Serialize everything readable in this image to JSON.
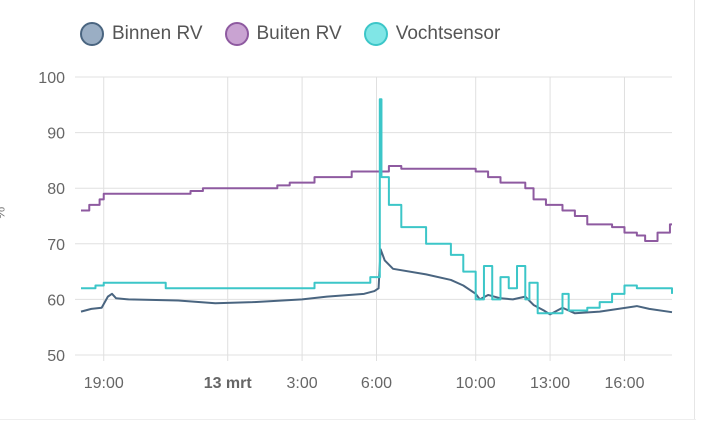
{
  "chart_data": {
    "type": "line",
    "ylabel": "%",
    "ylim": [
      50,
      100
    ],
    "yticks": [
      "100",
      "90",
      "80",
      "70",
      "60",
      "50"
    ],
    "xlim": [
      "12 mrt 18:05",
      "13 mrt 17:55"
    ],
    "xticks": [
      {
        "t": "12 mrt 19:00",
        "label": "19:00",
        "bold": false
      },
      {
        "t": "13 mrt 00:00",
        "label": "13 mrt",
        "bold": true
      },
      {
        "t": "13 mrt 03:00",
        "label": "3:00",
        "bold": false
      },
      {
        "t": "13 mrt 06:00",
        "label": "6:00",
        "bold": false
      },
      {
        "t": "13 mrt 10:00",
        "label": "10:00",
        "bold": false
      },
      {
        "t": "13 mrt 13:00",
        "label": "13:00",
        "bold": false
      },
      {
        "t": "13 mrt 16:00",
        "label": "16:00",
        "bold": false
      }
    ],
    "grid": true,
    "legend": "top",
    "series": [
      {
        "name": "Binnen RV",
        "color": "#4a6580",
        "fill": "#9aaec4",
        "step": false,
        "points": [
          [
            "12 mrt 18:05",
            57.8
          ],
          [
            "12 mrt 18:30",
            58.3
          ],
          [
            "12 mrt 18:55",
            58.5
          ],
          [
            "12 mrt 19:10",
            60.5
          ],
          [
            "12 mrt 19:20",
            61
          ],
          [
            "12 mrt 19:30",
            60.2
          ],
          [
            "12 mrt 20:00",
            60
          ],
          [
            "12 mrt 22:00",
            59.8
          ],
          [
            "12 mrt 23:30",
            59.3
          ],
          [
            "13 mrt 01:00",
            59.5
          ],
          [
            "13 mrt 03:00",
            60
          ],
          [
            "13 mrt 04:00",
            60.5
          ],
          [
            "13 mrt 05:30",
            61
          ],
          [
            "13 mrt 05:55",
            61.5
          ],
          [
            "13 mrt 06:05",
            62
          ],
          [
            "13 mrt 06:10",
            69
          ],
          [
            "13 mrt 06:20",
            67
          ],
          [
            "13 mrt 06:40",
            65.5
          ],
          [
            "13 mrt 08:00",
            64.5
          ],
          [
            "13 mrt 09:00",
            63.5
          ],
          [
            "13 mrt 09:30",
            62.5
          ],
          [
            "13 mrt 10:00",
            61
          ],
          [
            "13 mrt 10:10",
            60
          ],
          [
            "13 mrt 10:30",
            60.8
          ],
          [
            "13 mrt 11:00",
            60.2
          ],
          [
            "13 mrt 11:30",
            60
          ],
          [
            "13 mrt 12:00",
            60.5
          ],
          [
            "13 mrt 12:20",
            59
          ],
          [
            "13 mrt 12:45",
            58
          ],
          [
            "13 mrt 13:00",
            57.3
          ],
          [
            "13 mrt 13:30",
            58.5
          ],
          [
            "13 mrt 14:00",
            57.5
          ],
          [
            "13 mrt 15:00",
            57.8
          ],
          [
            "13 mrt 16:30",
            58.8
          ],
          [
            "13 mrt 17:00",
            58.3
          ],
          [
            "13 mrt 17:55",
            57.7
          ]
        ]
      },
      {
        "name": "Buiten RV",
        "color": "#8e5aa0",
        "fill": "#c9a3d2",
        "step": true,
        "points": [
          [
            "12 mrt 18:05",
            76
          ],
          [
            "12 mrt 18:25",
            77
          ],
          [
            "12 mrt 18:50",
            78
          ],
          [
            "12 mrt 19:00",
            79
          ],
          [
            "12 mrt 22:30",
            79.5
          ],
          [
            "12 mrt 23:00",
            80
          ],
          [
            "13 mrt 02:00",
            80.5
          ],
          [
            "13 mrt 02:30",
            81
          ],
          [
            "13 mrt 03:30",
            82
          ],
          [
            "13 mrt 05:00",
            83
          ],
          [
            "13 mrt 06:30",
            84
          ],
          [
            "13 mrt 07:00",
            83.5
          ],
          [
            "13 mrt 10:00",
            83
          ],
          [
            "13 mrt 10:30",
            82
          ],
          [
            "13 mrt 11:00",
            81
          ],
          [
            "13 mrt 12:00",
            80
          ],
          [
            "13 mrt 12:20",
            78
          ],
          [
            "13 mrt 12:50",
            77
          ],
          [
            "13 mrt 13:30",
            76
          ],
          [
            "13 mrt 14:00",
            75
          ],
          [
            "13 mrt 14:30",
            73.5
          ],
          [
            "13 mrt 15:30",
            73
          ],
          [
            "13 mrt 16:00",
            72
          ],
          [
            "13 mrt 16:30",
            71.5
          ],
          [
            "13 mrt 16:50",
            70.5
          ],
          [
            "13 mrt 17:20",
            72
          ],
          [
            "13 mrt 17:50",
            73.5
          ],
          [
            "13 mrt 17:55",
            73.5
          ]
        ]
      },
      {
        "name": "Vochtsensor",
        "color": "#3cc6c8",
        "fill": "#80e6e6",
        "step": true,
        "points": [
          [
            "12 mrt 18:05",
            62
          ],
          [
            "12 mrt 18:40",
            62.5
          ],
          [
            "12 mrt 19:00",
            63
          ],
          [
            "12 mrt 21:30",
            62
          ],
          [
            "13 mrt 03:00",
            62
          ],
          [
            "13 mrt 03:30",
            63
          ],
          [
            "13 mrt 05:45",
            64
          ],
          [
            "13 mrt 06:05",
            64
          ],
          [
            "13 mrt 06:08",
            96
          ],
          [
            "13 mrt 06:12",
            82
          ],
          [
            "13 mrt 06:30",
            77
          ],
          [
            "13 mrt 07:00",
            73
          ],
          [
            "13 mrt 08:00",
            70
          ],
          [
            "13 mrt 09:00",
            68
          ],
          [
            "13 mrt 09:30",
            65
          ],
          [
            "13 mrt 10:00",
            60
          ],
          [
            "13 mrt 10:20",
            66
          ],
          [
            "13 mrt 10:40",
            60
          ],
          [
            "13 mrt 11:00",
            64
          ],
          [
            "13 mrt 11:20",
            62
          ],
          [
            "13 mrt 11:40",
            66
          ],
          [
            "13 mrt 12:00",
            60
          ],
          [
            "13 mrt 12:10",
            63
          ],
          [
            "13 mrt 12:30",
            57.5
          ],
          [
            "13 mrt 13:30",
            61
          ],
          [
            "13 mrt 13:45",
            58
          ],
          [
            "13 mrt 14:30",
            58.5
          ],
          [
            "13 mrt 15:00",
            59.5
          ],
          [
            "13 mrt 15:30",
            61
          ],
          [
            "13 mrt 16:00",
            62.5
          ],
          [
            "13 mrt 16:30",
            62
          ],
          [
            "13 mrt 17:55",
            61
          ]
        ]
      }
    ]
  }
}
